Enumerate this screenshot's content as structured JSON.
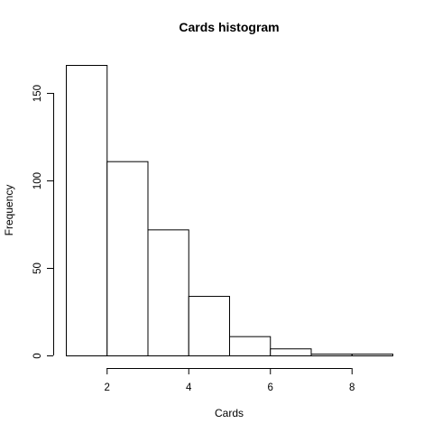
{
  "chart_data": {
    "type": "bar",
    "title": "Cards histogram",
    "xlabel": "Cards",
    "ylabel": "Frequency",
    "bins": [
      {
        "start": 1,
        "end": 2,
        "count": 166
      },
      {
        "start": 2,
        "end": 3,
        "count": 111
      },
      {
        "start": 3,
        "end": 4,
        "count": 72
      },
      {
        "start": 4,
        "end": 5,
        "count": 34
      },
      {
        "start": 5,
        "end": 6,
        "count": 11
      },
      {
        "start": 6,
        "end": 7,
        "count": 4
      },
      {
        "start": 7,
        "end": 8,
        "count": 1
      },
      {
        "start": 8,
        "end": 9,
        "count": 1
      }
    ],
    "x_ticks": [
      2,
      4,
      6,
      8
    ],
    "y_ticks": [
      0,
      50,
      100,
      150
    ],
    "xlim": [
      1,
      9
    ],
    "ylim": [
      0,
      166
    ],
    "grid": false,
    "legend": "none"
  }
}
